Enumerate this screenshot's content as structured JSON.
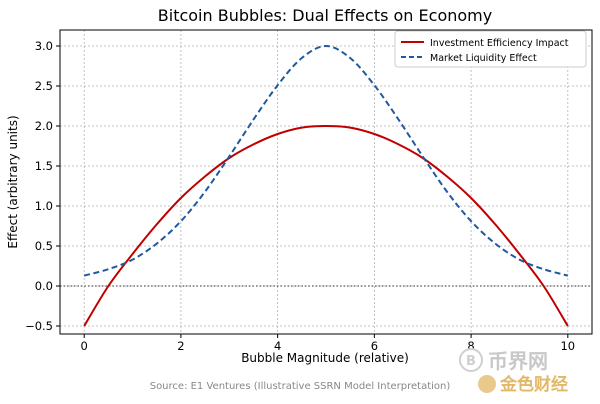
{
  "chart_data": {
    "type": "line",
    "title": "Bitcoin Bubbles: Dual Effects on Economy",
    "xlabel": "Bubble Magnitude (relative)",
    "ylabel": "Effect (arbitrary units)",
    "xlim": [
      -0.5,
      10.5
    ],
    "ylim": [
      -0.6,
      3.2
    ],
    "xticks": [
      "0",
      "2",
      "4",
      "6",
      "8",
      "10"
    ],
    "yticks": [
      "−0.5",
      "0.0",
      "0.5",
      "1.0",
      "1.5",
      "2.0",
      "2.5",
      "3.0"
    ],
    "grid": true,
    "reference_line_y": 0,
    "legend": "top-right",
    "series": [
      {
        "name": "Investment Efficiency Impact",
        "color": "#c00000",
        "style": "solid",
        "x": [
          0,
          0.5,
          1,
          1.5,
          2,
          2.5,
          3,
          3.5,
          4,
          4.5,
          5,
          5.5,
          6,
          6.5,
          7,
          7.5,
          8,
          8.5,
          9,
          9.5,
          10
        ],
        "y": [
          -0.5,
          -0.0,
          0.4,
          0.77,
          1.1,
          1.37,
          1.6,
          1.77,
          1.9,
          1.98,
          2.0,
          1.98,
          1.9,
          1.77,
          1.6,
          1.37,
          1.1,
          0.77,
          0.4,
          -0.0,
          -0.5
        ]
      },
      {
        "name": "Market Liquidity Effect",
        "color": "#1f5aa0",
        "style": "dashed",
        "x": [
          0,
          0.5,
          1,
          1.5,
          2,
          2.5,
          3,
          3.5,
          4,
          4.5,
          5,
          5.5,
          6,
          6.5,
          7,
          7.5,
          8,
          8.5,
          9,
          9.5,
          10
        ],
        "y": [
          0.13,
          0.21,
          0.33,
          0.53,
          0.81,
          1.18,
          1.62,
          2.08,
          2.51,
          2.85,
          3.0,
          2.85,
          2.51,
          2.08,
          1.62,
          1.18,
          0.81,
          0.53,
          0.33,
          0.21,
          0.13
        ]
      }
    ]
  },
  "source_note": "Source: E1 Ventures (Illustrative SSRN Model Interpretation)",
  "watermark": {
    "text": "币界网",
    "logo_text": "金色财经",
    "color": "#c8c8c8"
  }
}
